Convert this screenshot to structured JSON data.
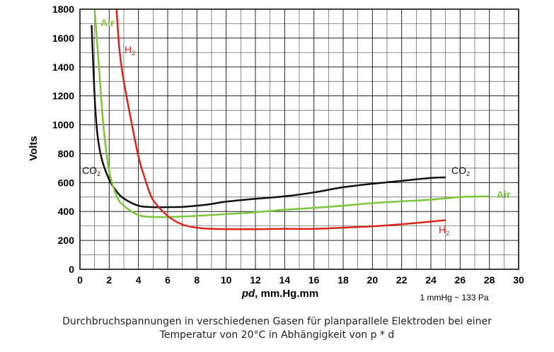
{
  "chart_data": {
    "type": "line",
    "title": "",
    "xlabel_italic": "pd",
    "xlabel_rest": ", mm.Hg.mm",
    "ylabel": "Volts",
    "xlim": [
      0,
      30
    ],
    "ylim": [
      0,
      1800
    ],
    "xticks": [
      0,
      2,
      4,
      6,
      8,
      10,
      12,
      14,
      16,
      18,
      20,
      22,
      24,
      26,
      28,
      30
    ],
    "yticks": [
      0,
      200,
      400,
      600,
      800,
      1000,
      1200,
      1400,
      1600,
      1800
    ],
    "grid": true,
    "series": [
      {
        "name": "CO2",
        "label_main": "CO",
        "label_sub": "2",
        "color": "#111111",
        "points": [
          [
            0.8,
            1690
          ],
          [
            1.0,
            1200
          ],
          [
            1.2,
            930
          ],
          [
            1.5,
            760
          ],
          [
            2.0,
            620
          ],
          [
            2.5,
            540
          ],
          [
            3.0,
            490
          ],
          [
            4.0,
            440
          ],
          [
            5.0,
            430
          ],
          [
            6.0,
            430
          ],
          [
            7.0,
            432
          ],
          [
            8.0,
            440
          ],
          [
            9.0,
            452
          ],
          [
            10.0,
            468
          ],
          [
            12.0,
            488
          ],
          [
            14.0,
            505
          ],
          [
            16.0,
            532
          ],
          [
            18.0,
            568
          ],
          [
            20.0,
            592
          ],
          [
            22.0,
            612
          ],
          [
            24.0,
            632
          ],
          [
            25.0,
            636
          ]
        ]
      },
      {
        "name": "Air",
        "label_main": "Air",
        "label_sub": "",
        "color": "#7cc63a",
        "points": [
          [
            1.0,
            1800
          ],
          [
            1.3,
            1400
          ],
          [
            1.6,
            1000
          ],
          [
            2.0,
            680
          ],
          [
            2.5,
            510
          ],
          [
            3.0,
            440
          ],
          [
            4.0,
            375
          ],
          [
            5.0,
            362
          ],
          [
            6.0,
            362
          ],
          [
            7.0,
            365
          ],
          [
            8.0,
            370
          ],
          [
            10.0,
            382
          ],
          [
            12.0,
            395
          ],
          [
            14.0,
            412
          ],
          [
            16.0,
            425
          ],
          [
            18.0,
            440
          ],
          [
            20.0,
            458
          ],
          [
            22.0,
            470
          ],
          [
            24.0,
            482
          ],
          [
            26.0,
            500
          ],
          [
            28.0,
            505
          ]
        ]
      },
      {
        "name": "H2",
        "label_main": "H",
        "label_sub": "2",
        "color": "#d9261c",
        "points": [
          [
            2.5,
            1800
          ],
          [
            2.7,
            1520
          ],
          [
            3.0,
            1300
          ],
          [
            3.5,
            1030
          ],
          [
            4.0,
            780
          ],
          [
            4.5,
            610
          ],
          [
            5.0,
            480
          ],
          [
            6.0,
            370
          ],
          [
            7.0,
            310
          ],
          [
            8.0,
            288
          ],
          [
            9.0,
            280
          ],
          [
            10.0,
            278
          ],
          [
            12.0,
            278
          ],
          [
            14.0,
            280
          ],
          [
            16.0,
            280
          ],
          [
            18.0,
            288
          ],
          [
            20.0,
            298
          ],
          [
            22.0,
            312
          ],
          [
            24.0,
            330
          ],
          [
            25.0,
            340
          ]
        ]
      }
    ]
  },
  "note": "1 mmHg  ~  133 Pa",
  "caption": {
    "line1": "Durchbruchspannungen in verschiedenen Gasen für planparallele Elektroden bei einer",
    "line2": "Temperatur von 20°C in Abhängigkeit von p * d"
  }
}
